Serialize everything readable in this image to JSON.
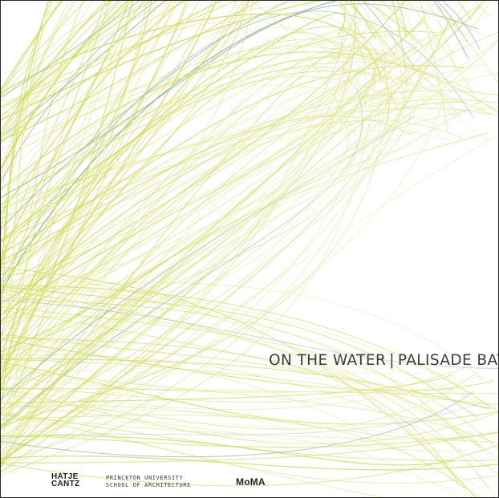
{
  "cover": {
    "title_left": "ON THE WATER",
    "title_separator": "|",
    "title_right": "PALISADE BAY"
  },
  "publishers": {
    "hatje_line1": "HATJE",
    "hatje_line2": "CANTZ",
    "princeton_line1": "PRINCETON UNIVERSITY",
    "princeton_line2": "SCHOOL OF ARCHITECTURE",
    "moma": "MoMA"
  },
  "colors": {
    "primary_lines": "#cfdc5a",
    "light_lines": "#e4ec9c",
    "accent_lines": "#8fb3a0",
    "text": "#3a3a3a"
  }
}
